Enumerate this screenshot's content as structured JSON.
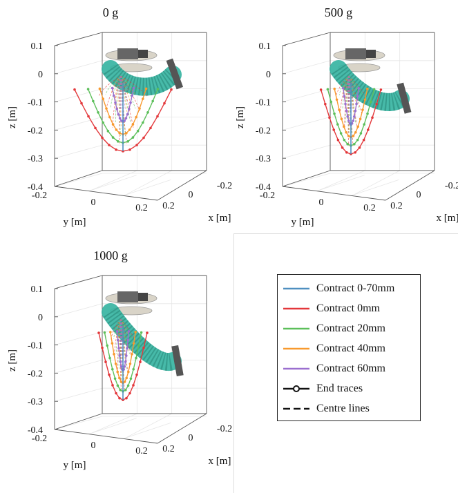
{
  "chart_data": [
    {
      "type": "line",
      "title": "0 g",
      "xlabel": "x [m]",
      "ylabel": "y [m]",
      "zlabel": "z [m]",
      "xticks": [
        "-0.2",
        "0",
        "0.2"
      ],
      "yticks": [
        "-0.2",
        "0",
        "0.2"
      ],
      "zticks": [
        "0.1",
        "0",
        "-0.1",
        "-0.2",
        "-0.3",
        "-0.4"
      ],
      "zlim": [
        -0.4,
        0.1
      ],
      "end_trace_bottom_z": -0.275,
      "series": [
        {
          "name": "Contract 0mm",
          "color": "#e3373a",
          "apex_z": -0.275,
          "spread": 1.0
        },
        {
          "name": "Contract 20mm",
          "color": "#5cbf5a",
          "apex_z": -0.245,
          "spread": 0.72
        },
        {
          "name": "Contract 40mm",
          "color": "#f8992e",
          "apex_z": -0.215,
          "spread": 0.48
        },
        {
          "name": "Contract 60mm",
          "color": "#9b6fcf",
          "apex_z": -0.17,
          "spread": 0.22
        }
      ]
    },
    {
      "type": "line",
      "title": "500 g",
      "xlabel": "x [m]",
      "ylabel": "y [m]",
      "zlabel": "z [m]",
      "xticks": [
        "-0.2",
        "0",
        "0.2"
      ],
      "yticks": [
        "-0.2",
        "0",
        "0.2"
      ],
      "zticks": [
        "0.1",
        "0",
        "-0.1",
        "-0.2",
        "-0.3",
        "-0.4"
      ],
      "zlim": [
        -0.4,
        0.1
      ],
      "end_trace_bottom_z": -0.285,
      "series": [
        {
          "name": "Contract 0mm",
          "color": "#e3373a",
          "apex_z": -0.285,
          "spread": 0.62
        },
        {
          "name": "Contract 20mm",
          "color": "#5cbf5a",
          "apex_z": -0.255,
          "spread": 0.48
        },
        {
          "name": "Contract 40mm",
          "color": "#f8992e",
          "apex_z": -0.225,
          "spread": 0.34
        },
        {
          "name": "Contract 60mm",
          "color": "#9b6fcf",
          "apex_z": -0.18,
          "spread": 0.16
        }
      ]
    },
    {
      "type": "line",
      "title": "1000 g",
      "xlabel": "x [m]",
      "ylabel": "y [m]",
      "zlabel": "z [m]",
      "xticks": [
        "-0.2",
        "0",
        "0.2"
      ],
      "yticks": [
        "-0.2",
        "0",
        "0.2"
      ],
      "zticks": [
        "0.1",
        "0",
        "-0.1",
        "-0.2",
        "-0.3",
        "-0.4"
      ],
      "zlim": [
        -0.4,
        0.1
      ],
      "end_trace_bottom_z": -0.295,
      "series": [
        {
          "name": "Contract 0mm",
          "color": "#e3373a",
          "apex_z": -0.295,
          "spread": 0.5
        },
        {
          "name": "Contract 20mm",
          "color": "#5cbf5a",
          "apex_z": -0.265,
          "spread": 0.38
        },
        {
          "name": "Contract 40mm",
          "color": "#f8992e",
          "apex_z": -0.235,
          "spread": 0.26
        },
        {
          "name": "Contract 60mm",
          "color": "#9b6fcf",
          "apex_z": -0.19,
          "spread": 0.12
        }
      ]
    }
  ],
  "legend": {
    "items": [
      {
        "label": "Contract 0-70mm",
        "color": "#4f8fc0",
        "style": "solid"
      },
      {
        "label": "Contract 0mm",
        "color": "#e3373a",
        "style": "solid"
      },
      {
        "label": "Contract 20mm",
        "color": "#5cbf5a",
        "style": "solid"
      },
      {
        "label": "Contract 40mm",
        "color": "#f8992e",
        "style": "solid"
      },
      {
        "label": "Contract 60mm",
        "color": "#9b6fcf",
        "style": "solid"
      },
      {
        "label": "End traces",
        "color": "#111111",
        "style": "marker"
      },
      {
        "label": "Centre lines",
        "color": "#111111",
        "style": "dashed"
      }
    ]
  },
  "colors": {
    "arm": "#33b3a0",
    "arm_mesh": "#2a8a7c",
    "mount": "#d9d4c8",
    "gripper": "#555555",
    "axes": "#555555",
    "grid": "#e6e6e6"
  }
}
